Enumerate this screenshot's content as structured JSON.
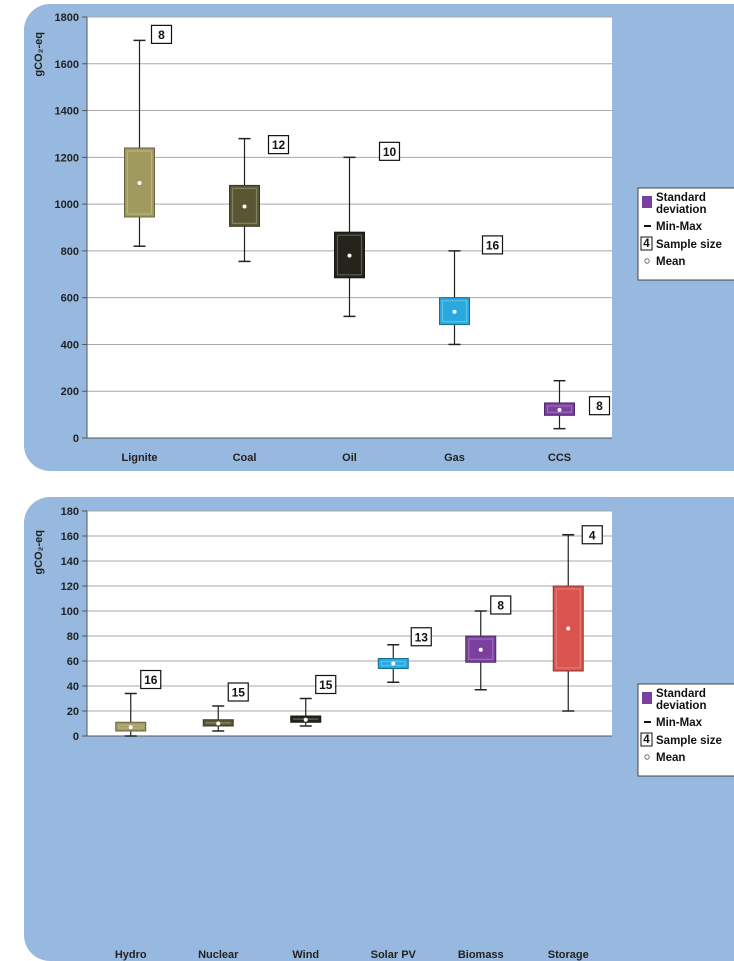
{
  "chart_data": [
    {
      "type": "box",
      "ylabel": "gCO2-eq",
      "ylim": [
        0,
        1800
      ],
      "yticks": [
        0,
        200,
        400,
        600,
        800,
        1000,
        1200,
        1400,
        1600,
        1800
      ],
      "grid": true,
      "legend_position": "right",
      "categories": [
        "Lignite",
        "Coal",
        "Oil",
        "Gas",
        "CCS"
      ],
      "boxes": [
        {
          "category": "Lignite",
          "min": 820,
          "q1": 945,
          "mean": 1090,
          "q3": 1240,
          "max": 1700,
          "sample_size": "8",
          "color": "#a09a5f"
        },
        {
          "category": "Coal",
          "min": 755,
          "q1": 905,
          "mean": 990,
          "q3": 1080,
          "max": 1280,
          "sample_size": "12",
          "color": "#5a5634"
        },
        {
          "category": "Oil",
          "min": 520,
          "q1": 685,
          "mean": 780,
          "q3": 880,
          "max": 1200,
          "sample_size": "10",
          "color": "#25241a"
        },
        {
          "category": "Gas",
          "min": 400,
          "q1": 485,
          "mean": 540,
          "q3": 600,
          "max": 800,
          "sample_size": "16",
          "color": "#29a9e0"
        },
        {
          "category": "CCS",
          "min": 40,
          "q1": 97,
          "mean": 120,
          "q3": 150,
          "max": 245,
          "sample_size": "8",
          "color": "#7a3f9f"
        }
      ],
      "legend": {
        "std_label_1": "Standard",
        "std_label_2": "deviation",
        "minmax_label": "Min-Max",
        "sample_badge": "4",
        "sample_label": "Sample size",
        "mean_label": "Mean"
      }
    },
    {
      "type": "box",
      "ylabel": "gCO2-eq",
      "ylim": [
        0,
        180
      ],
      "yticks": [
        0,
        20,
        40,
        60,
        80,
        100,
        120,
        140,
        160,
        180
      ],
      "grid": true,
      "legend_position": "right",
      "categories": [
        "Hydro",
        "Nuclear",
        "Wind",
        "Solar PV",
        "Biomass",
        "Storage"
      ],
      "boxes": [
        {
          "category": "Hydro",
          "min": 0,
          "q1": 4,
          "mean": 7,
          "q3": 11,
          "max": 34,
          "sample_size": "16",
          "color": "#a09a5f"
        },
        {
          "category": "Nuclear",
          "min": 4,
          "q1": 8,
          "mean": 10,
          "q3": 13,
          "max": 24,
          "sample_size": "15",
          "color": "#5a5634"
        },
        {
          "category": "Wind",
          "min": 8,
          "q1": 11,
          "mean": 13,
          "q3": 16,
          "max": 30,
          "sample_size": "15",
          "color": "#25241a"
        },
        {
          "category": "Solar PV",
          "min": 43,
          "q1": 54,
          "mean": 58,
          "q3": 62,
          "max": 73,
          "sample_size": "13",
          "color": "#29a9e0"
        },
        {
          "category": "Biomass",
          "min": 37,
          "q1": 59,
          "mean": 69,
          "q3": 80,
          "max": 100,
          "sample_size": "8",
          "color": "#7a3f9f"
        },
        {
          "category": "Storage",
          "min": 20,
          "q1": 52,
          "mean": 86,
          "q3": 120,
          "max": 161,
          "sample_size": "4",
          "color": "#d9534f"
        }
      ],
      "legend": {
        "std_label_1": "Standard",
        "std_label_2": "deviation",
        "minmax_label": "Min-Max",
        "sample_badge": "4",
        "sample_label": "Sample size",
        "mean_label": "Mean"
      }
    }
  ]
}
